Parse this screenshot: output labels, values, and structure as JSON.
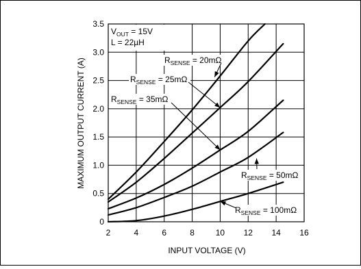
{
  "chart_data": {
    "type": "line",
    "xlabel": "INPUT VOLTAGE (V)",
    "ylabel": "MAXIMUM OUTPUT CURRENT (A)",
    "xlim": [
      2,
      16
    ],
    "ylim": [
      0,
      3.5
    ],
    "x_ticks": [
      "2",
      "4",
      "6",
      "8",
      "10",
      "12",
      "14",
      "16"
    ],
    "y_ticks": [
      "0",
      "0.5",
      "1.0",
      "1.5",
      "2.0",
      "2.5",
      "3.0",
      "3.5"
    ],
    "grid": true,
    "conditions": [
      {
        "main": "V",
        "sub": "OUT",
        "suffix": " = 15V"
      },
      {
        "main": "L = 22µH",
        "sub": "",
        "suffix": ""
      }
    ],
    "series": [
      {
        "name": "RSENSE = 20mΩ",
        "label_main": "R",
        "label_sub": "SENSE",
        "label_suffix": " = 20mΩ",
        "x": [
          2.0,
          4.0,
          6.0,
          8.0,
          10.0,
          12.0,
          13.2
        ],
        "y": [
          0.4,
          0.88,
          1.42,
          1.98,
          2.58,
          3.2,
          3.55
        ]
      },
      {
        "name": "RSENSE = 25mΩ",
        "label_main": "R",
        "label_sub": "SENSE",
        "label_suffix": " = 25mΩ",
        "x": [
          2.0,
          4.0,
          6.0,
          8.0,
          10.0,
          12.0,
          14.5
        ],
        "y": [
          0.35,
          0.7,
          1.12,
          1.57,
          2.02,
          2.48,
          3.15
        ]
      },
      {
        "name": "RSENSE = 35mΩ",
        "label_main": "R",
        "label_sub": "SENSE",
        "label_suffix": " = 35mΩ",
        "x": [
          2.0,
          4.0,
          6.0,
          8.0,
          10.0,
          12.0,
          14.5
        ],
        "y": [
          0.23,
          0.42,
          0.66,
          0.95,
          1.27,
          1.6,
          2.15
        ]
      },
      {
        "name": "RSENSE = 50mΩ",
        "label_main": "R",
        "label_sub": "SENSE",
        "label_suffix": " = 50mΩ",
        "x": [
          2.0,
          4.0,
          6.0,
          8.0,
          10.0,
          12.0,
          14.5
        ],
        "y": [
          0.12,
          0.25,
          0.43,
          0.63,
          0.88,
          1.14,
          1.58
        ]
      },
      {
        "name": "RSENSE = 100mΩ",
        "label_main": "R",
        "label_sub": "SENSE",
        "label_suffix": " = 100mΩ",
        "x": [
          2.0,
          4.0,
          6.0,
          8.0,
          10.0,
          12.0,
          14.5
        ],
        "y": [
          0.0,
          0.02,
          0.1,
          0.22,
          0.36,
          0.5,
          0.7
        ]
      }
    ]
  }
}
